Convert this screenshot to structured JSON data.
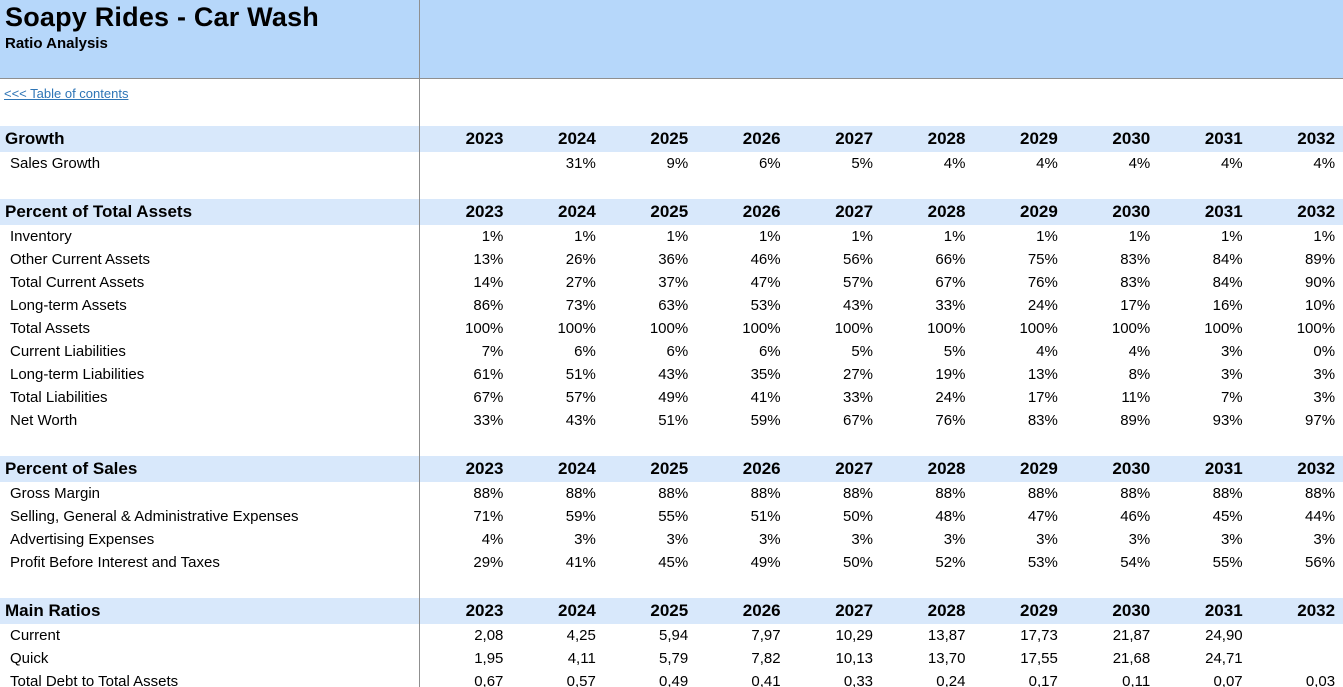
{
  "header": {
    "title": "Soapy Rides - Car Wash",
    "subtitle": "Ratio Analysis"
  },
  "nav": {
    "toc_link": "<<< Table of contents"
  },
  "years": [
    "2023",
    "2024",
    "2025",
    "2026",
    "2027",
    "2028",
    "2029",
    "2030",
    "2031",
    "2032"
  ],
  "sections": [
    {
      "title": "Growth",
      "rows": [
        {
          "label": "Sales Growth",
          "values": [
            "",
            "31%",
            "9%",
            "6%",
            "5%",
            "4%",
            "4%",
            "4%",
            "4%",
            "4%"
          ]
        }
      ]
    },
    {
      "title": "Percent of Total Assets",
      "rows": [
        {
          "label": "Inventory",
          "values": [
            "1%",
            "1%",
            "1%",
            "1%",
            "1%",
            "1%",
            "1%",
            "1%",
            "1%",
            "1%"
          ]
        },
        {
          "label": "Other Current Assets",
          "values": [
            "13%",
            "26%",
            "36%",
            "46%",
            "56%",
            "66%",
            "75%",
            "83%",
            "84%",
            "89%"
          ]
        },
        {
          "label": "Total Current Assets",
          "values": [
            "14%",
            "27%",
            "37%",
            "47%",
            "57%",
            "67%",
            "76%",
            "83%",
            "84%",
            "90%"
          ]
        },
        {
          "label": "Long-term Assets",
          "values": [
            "86%",
            "73%",
            "63%",
            "53%",
            "43%",
            "33%",
            "24%",
            "17%",
            "16%",
            "10%"
          ]
        },
        {
          "label": "Total Assets",
          "values": [
            "100%",
            "100%",
            "100%",
            "100%",
            "100%",
            "100%",
            "100%",
            "100%",
            "100%",
            "100%"
          ]
        },
        {
          "label": "Current Liabilities",
          "values": [
            "7%",
            "6%",
            "6%",
            "6%",
            "5%",
            "5%",
            "4%",
            "4%",
            "3%",
            "0%"
          ]
        },
        {
          "label": "Long-term Liabilities",
          "values": [
            "61%",
            "51%",
            "43%",
            "35%",
            "27%",
            "19%",
            "13%",
            "8%",
            "3%",
            "3%"
          ]
        },
        {
          "label": "Total Liabilities",
          "values": [
            "67%",
            "57%",
            "49%",
            "41%",
            "33%",
            "24%",
            "17%",
            "11%",
            "7%",
            "3%"
          ]
        },
        {
          "label": "Net Worth",
          "values": [
            "33%",
            "43%",
            "51%",
            "59%",
            "67%",
            "76%",
            "83%",
            "89%",
            "93%",
            "97%"
          ]
        }
      ]
    },
    {
      "title": "Percent of Sales",
      "rows": [
        {
          "label": "Gross Margin",
          "values": [
            "88%",
            "88%",
            "88%",
            "88%",
            "88%",
            "88%",
            "88%",
            "88%",
            "88%",
            "88%"
          ]
        },
        {
          "label": "Selling, General & Administrative Expenses",
          "values": [
            "71%",
            "59%",
            "55%",
            "51%",
            "50%",
            "48%",
            "47%",
            "46%",
            "45%",
            "44%"
          ]
        },
        {
          "label": "Advertising Expenses",
          "values": [
            "4%",
            "3%",
            "3%",
            "3%",
            "3%",
            "3%",
            "3%",
            "3%",
            "3%",
            "3%"
          ]
        },
        {
          "label": "Profit Before Interest and Taxes",
          "values": [
            "29%",
            "41%",
            "45%",
            "49%",
            "50%",
            "52%",
            "53%",
            "54%",
            "55%",
            "56%"
          ]
        }
      ]
    },
    {
      "title": "Main Ratios",
      "rows": [
        {
          "label": "Current",
          "values": [
            "2,08",
            "4,25",
            "5,94",
            "7,97",
            "10,29",
            "13,87",
            "17,73",
            "21,87",
            "24,90",
            ""
          ]
        },
        {
          "label": "Quick",
          "values": [
            "1,95",
            "4,11",
            "5,79",
            "7,82",
            "10,13",
            "13,70",
            "17,55",
            "21,68",
            "24,71",
            ""
          ]
        },
        {
          "label": "Total Debt to Total Assets",
          "values": [
            "0,67",
            "0,57",
            "0,49",
            "0,41",
            "0,33",
            "0,24",
            "0,17",
            "0,11",
            "0,07",
            "0,03"
          ]
        }
      ]
    }
  ],
  "colors": {
    "top_band": "#B6D7FA",
    "section_band": "#D8E8FB",
    "grid_line": "#8f8f8f",
    "link": "#2E75B6"
  }
}
